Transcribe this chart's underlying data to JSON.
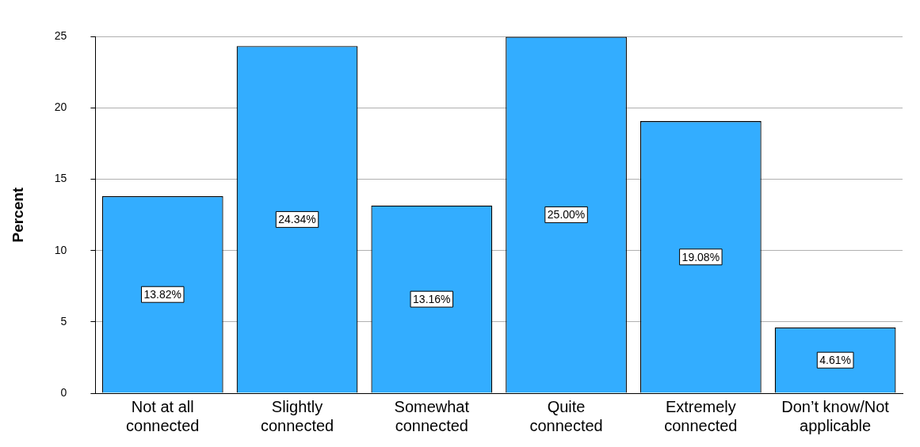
{
  "chart_data": {
    "type": "bar",
    "ylabel": "Percent",
    "categories": [
      "Not at all connected",
      "Slightly connected",
      "Somewhat connected",
      "Quite connected",
      "Extremely connected",
      "Don’t know/Not applicable"
    ],
    "values": [
      13.82,
      24.34,
      13.16,
      25.0,
      19.08,
      4.61
    ],
    "value_labels": [
      "13.82%",
      "24.34%",
      "13.16%",
      "25.00%",
      "19.08%",
      "4.61%"
    ],
    "color": "#33adff",
    "ylim": [
      0,
      25
    ],
    "yticks": [
      0,
      5,
      10,
      15,
      20,
      25
    ],
    "grid": "y",
    "legend": false
  }
}
